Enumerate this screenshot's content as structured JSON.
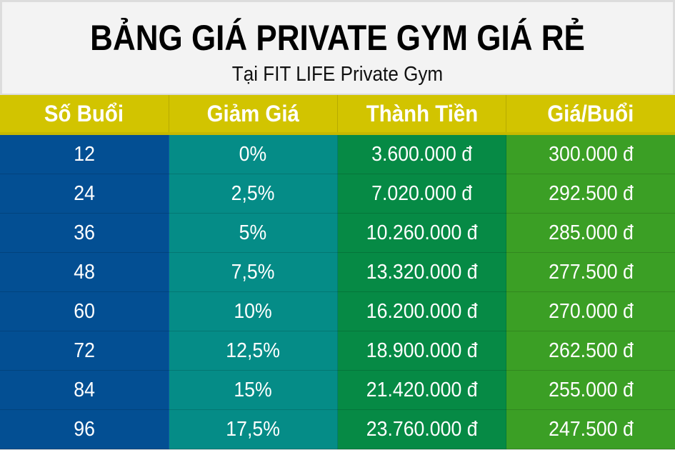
{
  "header": {
    "title": "BẢNG GIÁ PRIVATE GYM GIÁ RẺ",
    "subtitle": "Tại FIT LIFE Private Gym"
  },
  "table": {
    "columns": [
      "Số Buổi",
      "Giảm Giá",
      "Thành Tiền",
      "Giá/Buổi"
    ],
    "rows": [
      [
        "12",
        "0%",
        "3.600.000 đ",
        "300.000 đ"
      ],
      [
        "24",
        "2,5%",
        "7.020.000 đ",
        "292.500 đ"
      ],
      [
        "36",
        "5%",
        "10.260.000 đ",
        "285.000 đ"
      ],
      [
        "48",
        "7,5%",
        "13.320.000 đ",
        "277.500 đ"
      ],
      [
        "60",
        "10%",
        "16.200.000 đ",
        "270.000 đ"
      ],
      [
        "72",
        "12,5%",
        "18.900.000 đ",
        "262.500 đ"
      ],
      [
        "84",
        "15%",
        "21.420.000 đ",
        "255.000 đ"
      ],
      [
        "96",
        "17,5%",
        "23.760.000 đ",
        "247.500 đ"
      ]
    ]
  },
  "colors": {
    "header_bg": "#d2c400",
    "col_sessions": "#034f93",
    "col_discount": "#058c87",
    "col_total": "#068a45",
    "col_per_session": "#3b9f25"
  }
}
